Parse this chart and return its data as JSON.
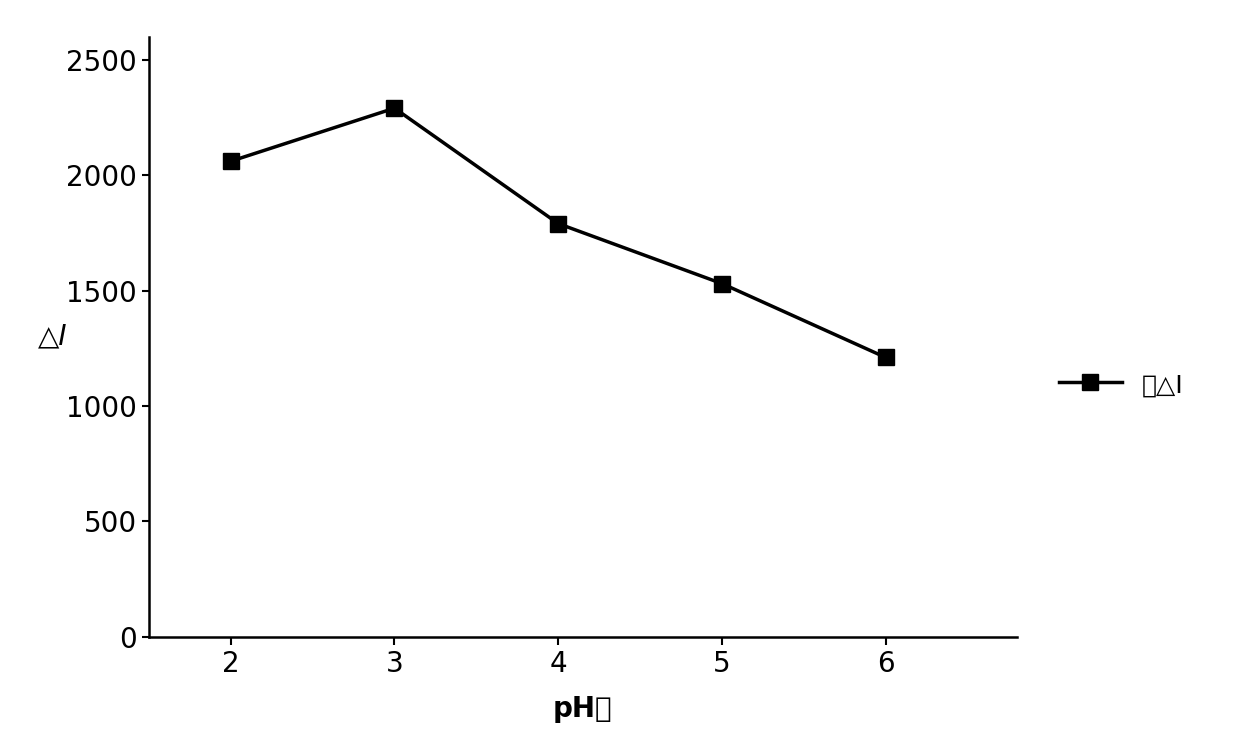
{
  "x": [
    2,
    3,
    4,
    5,
    6
  ],
  "y": [
    2060,
    2290,
    1790,
    1530,
    1210
  ],
  "xlabel": "pH値",
  "ylabel": "△I",
  "legend_label": "总△I",
  "xlim": [
    1.5,
    6.8
  ],
  "ylim": [
    0,
    2600
  ],
  "yticks": [
    0,
    500,
    1000,
    1500,
    2000,
    2500
  ],
  "xticks": [
    2,
    3,
    4,
    5,
    6
  ],
  "line_color": "#000000",
  "marker": "s",
  "marker_size": 11,
  "line_width": 2.5,
  "background_color": "#ffffff",
  "label_fontsize": 20,
  "tick_fontsize": 20,
  "legend_fontsize": 18
}
